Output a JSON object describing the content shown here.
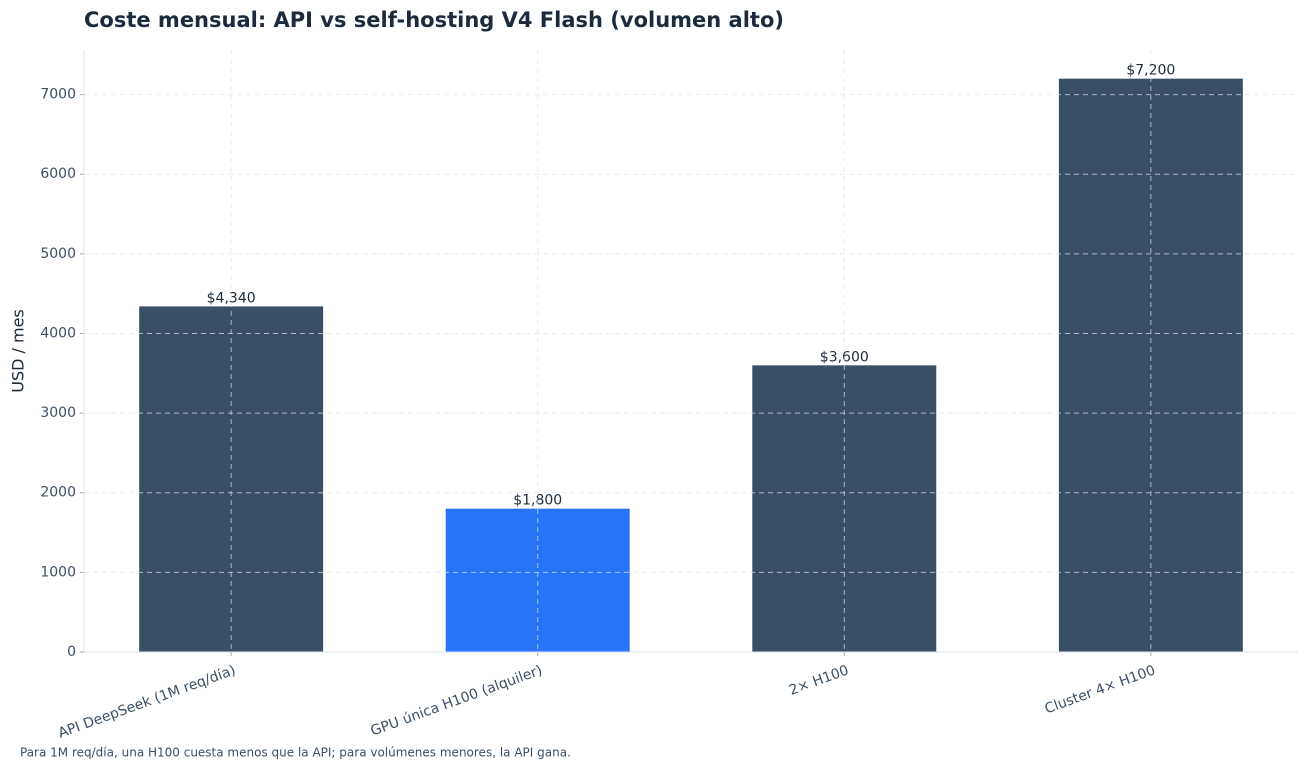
{
  "chart_data": {
    "type": "bar",
    "title": "Coste mensual: API vs self-hosting V4 Flash (volumen alto)",
    "ylabel": "USD / mes",
    "footnote": "Para 1M req/día, una H100 cuesta menos que la API; para volúmenes menores, la API gana.",
    "categories": [
      "API DeepSeek (1M req/día)",
      "GPU única H100 (alquiler)",
      "2× H100",
      "Cluster 4× H100"
    ],
    "values": [
      4340,
      1800,
      3600,
      7200
    ],
    "value_labels": [
      "$4,340",
      "$1,800",
      "$3,600",
      "$7,200"
    ],
    "colors": [
      "#3a4f66",
      "#2874f8",
      "#3a4f66",
      "#3a4f66"
    ],
    "ylim": [
      0,
      7560
    ],
    "yticks": [
      0,
      1000,
      2000,
      3000,
      4000,
      5000,
      6000,
      7000
    ],
    "grid": true
  }
}
